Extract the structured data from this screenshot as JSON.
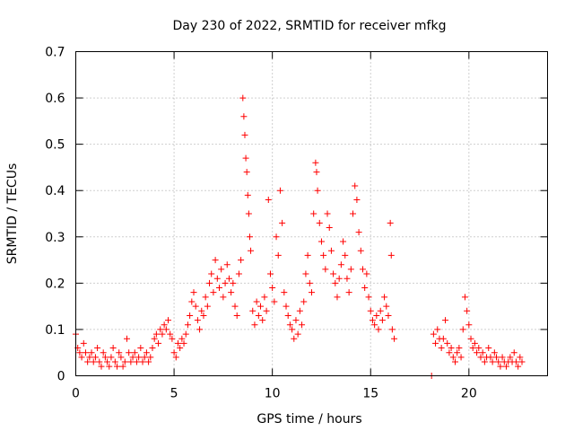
{
  "chart_data": {
    "type": "scatter",
    "title": "Day 230 of 2022, SRMTID for receiver mfkg",
    "xlabel": "GPS time / hours",
    "ylabel": "SRMTID / TECUs",
    "xlim": [
      0,
      24
    ],
    "ylim": [
      0,
      0.7
    ],
    "x_ticks": [
      0,
      5,
      10,
      15,
      20
    ],
    "x_tick_labels": [
      "0",
      "5",
      "10",
      "15",
      "20"
    ],
    "y_ticks": [
      0,
      0.1,
      0.2,
      0.3,
      0.4,
      0.5,
      0.6,
      0.7
    ],
    "y_tick_labels": [
      "0",
      "0.1",
      "0.2",
      "0.3",
      "0.4",
      "0.5",
      "0.6",
      "0.7"
    ],
    "grid": true,
    "marker": "+",
    "colors": {
      "series": "#ff0000",
      "grid": "#a0a0a0",
      "axis": "#000000"
    },
    "series": [
      {
        "name": "SRMTID",
        "points": [
          [
            0.0,
            0.09
          ],
          [
            0.1,
            0.06
          ],
          [
            0.2,
            0.05
          ],
          [
            0.3,
            0.04
          ],
          [
            0.4,
            0.07
          ],
          [
            0.5,
            0.05
          ],
          [
            0.6,
            0.03
          ],
          [
            0.7,
            0.04
          ],
          [
            0.8,
            0.05
          ],
          [
            0.9,
            0.03
          ],
          [
            1.0,
            0.04
          ],
          [
            1.1,
            0.06
          ],
          [
            1.2,
            0.03
          ],
          [
            1.3,
            0.02
          ],
          [
            1.4,
            0.05
          ],
          [
            1.5,
            0.04
          ],
          [
            1.6,
            0.03
          ],
          [
            1.7,
            0.02
          ],
          [
            1.8,
            0.04
          ],
          [
            1.9,
            0.06
          ],
          [
            2.0,
            0.03
          ],
          [
            2.1,
            0.02
          ],
          [
            2.2,
            0.05
          ],
          [
            2.3,
            0.04
          ],
          [
            2.4,
            0.02
          ],
          [
            2.5,
            0.03
          ],
          [
            2.6,
            0.08
          ],
          [
            2.7,
            0.05
          ],
          [
            2.8,
            0.03
          ],
          [
            2.9,
            0.04
          ],
          [
            3.0,
            0.05
          ],
          [
            3.1,
            0.03
          ],
          [
            3.2,
            0.04
          ],
          [
            3.3,
            0.06
          ],
          [
            3.4,
            0.03
          ],
          [
            3.5,
            0.04
          ],
          [
            3.6,
            0.05
          ],
          [
            3.7,
            0.03
          ],
          [
            3.8,
            0.04
          ],
          [
            3.9,
            0.06
          ],
          [
            4.0,
            0.08
          ],
          [
            4.1,
            0.09
          ],
          [
            4.2,
            0.07
          ],
          [
            4.3,
            0.1
          ],
          [
            4.4,
            0.09
          ],
          [
            4.5,
            0.11
          ],
          [
            4.6,
            0.1
          ],
          [
            4.7,
            0.12
          ],
          [
            4.8,
            0.09
          ],
          [
            4.9,
            0.08
          ],
          [
            5.0,
            0.05
          ],
          [
            5.1,
            0.04
          ],
          [
            5.2,
            0.07
          ],
          [
            5.3,
            0.06
          ],
          [
            5.4,
            0.08
          ],
          [
            5.5,
            0.07
          ],
          [
            5.6,
            0.09
          ],
          [
            5.7,
            0.11
          ],
          [
            5.8,
            0.13
          ],
          [
            5.9,
            0.16
          ],
          [
            6.0,
            0.18
          ],
          [
            6.1,
            0.15
          ],
          [
            6.2,
            0.12
          ],
          [
            6.3,
            0.1
          ],
          [
            6.4,
            0.14
          ],
          [
            6.5,
            0.13
          ],
          [
            6.6,
            0.17
          ],
          [
            6.7,
            0.15
          ],
          [
            6.8,
            0.2
          ],
          [
            6.9,
            0.22
          ],
          [
            7.0,
            0.18
          ],
          [
            7.1,
            0.25
          ],
          [
            7.2,
            0.21
          ],
          [
            7.3,
            0.19
          ],
          [
            7.4,
            0.23
          ],
          [
            7.5,
            0.17
          ],
          [
            7.6,
            0.2
          ],
          [
            7.7,
            0.24
          ],
          [
            7.8,
            0.21
          ],
          [
            7.9,
            0.18
          ],
          [
            8.0,
            0.2
          ],
          [
            8.1,
            0.15
          ],
          [
            8.2,
            0.13
          ],
          [
            8.3,
            0.22
          ],
          [
            8.4,
            0.25
          ],
          [
            8.5,
            0.6
          ],
          [
            8.55,
            0.56
          ],
          [
            8.6,
            0.52
          ],
          [
            8.65,
            0.47
          ],
          [
            8.7,
            0.44
          ],
          [
            8.75,
            0.39
          ],
          [
            8.8,
            0.35
          ],
          [
            8.85,
            0.3
          ],
          [
            8.9,
            0.27
          ],
          [
            9.0,
            0.14
          ],
          [
            9.1,
            0.11
          ],
          [
            9.2,
            0.16
          ],
          [
            9.3,
            0.13
          ],
          [
            9.4,
            0.15
          ],
          [
            9.5,
            0.12
          ],
          [
            9.6,
            0.17
          ],
          [
            9.7,
            0.14
          ],
          [
            9.8,
            0.38
          ],
          [
            9.9,
            0.22
          ],
          [
            10.0,
            0.19
          ],
          [
            10.1,
            0.16
          ],
          [
            10.2,
            0.3
          ],
          [
            10.3,
            0.26
          ],
          [
            10.4,
            0.4
          ],
          [
            10.5,
            0.33
          ],
          [
            10.6,
            0.18
          ],
          [
            10.7,
            0.15
          ],
          [
            10.8,
            0.13
          ],
          [
            10.9,
            0.11
          ],
          [
            11.0,
            0.1
          ],
          [
            11.1,
            0.08
          ],
          [
            11.2,
            0.12
          ],
          [
            11.3,
            0.09
          ],
          [
            11.4,
            0.14
          ],
          [
            11.5,
            0.11
          ],
          [
            11.6,
            0.16
          ],
          [
            11.7,
            0.22
          ],
          [
            11.8,
            0.26
          ],
          [
            11.9,
            0.2
          ],
          [
            12.0,
            0.18
          ],
          [
            12.1,
            0.35
          ],
          [
            12.2,
            0.46
          ],
          [
            12.25,
            0.44
          ],
          [
            12.3,
            0.4
          ],
          [
            12.4,
            0.33
          ],
          [
            12.5,
            0.29
          ],
          [
            12.6,
            0.26
          ],
          [
            12.7,
            0.23
          ],
          [
            12.8,
            0.35
          ],
          [
            12.9,
            0.32
          ],
          [
            13.0,
            0.27
          ],
          [
            13.1,
            0.22
          ],
          [
            13.2,
            0.2
          ],
          [
            13.3,
            0.17
          ],
          [
            13.4,
            0.21
          ],
          [
            13.5,
            0.24
          ],
          [
            13.6,
            0.29
          ],
          [
            13.7,
            0.26
          ],
          [
            13.8,
            0.21
          ],
          [
            13.9,
            0.18
          ],
          [
            14.0,
            0.23
          ],
          [
            14.1,
            0.35
          ],
          [
            14.2,
            0.41
          ],
          [
            14.3,
            0.38
          ],
          [
            14.4,
            0.31
          ],
          [
            14.5,
            0.27
          ],
          [
            14.6,
            0.23
          ],
          [
            14.7,
            0.19
          ],
          [
            14.8,
            0.22
          ],
          [
            14.9,
            0.17
          ],
          [
            15.0,
            0.14
          ],
          [
            15.1,
            0.12
          ],
          [
            15.2,
            0.11
          ],
          [
            15.3,
            0.13
          ],
          [
            15.4,
            0.1
          ],
          [
            15.5,
            0.14
          ],
          [
            15.6,
            0.12
          ],
          [
            15.7,
            0.17
          ],
          [
            15.8,
            0.15
          ],
          [
            15.9,
            0.13
          ],
          [
            16.0,
            0.33
          ],
          [
            16.05,
            0.26
          ],
          [
            16.1,
            0.1
          ],
          [
            16.2,
            0.08
          ],
          [
            18.1,
            0.0
          ],
          [
            18.2,
            0.09
          ],
          [
            18.3,
            0.07
          ],
          [
            18.4,
            0.1
          ],
          [
            18.5,
            0.08
          ],
          [
            18.6,
            0.06
          ],
          [
            18.7,
            0.08
          ],
          [
            18.8,
            0.12
          ],
          [
            18.9,
            0.07
          ],
          [
            19.0,
            0.05
          ],
          [
            19.1,
            0.06
          ],
          [
            19.2,
            0.04
          ],
          [
            19.3,
            0.03
          ],
          [
            19.4,
            0.05
          ],
          [
            19.5,
            0.06
          ],
          [
            19.6,
            0.04
          ],
          [
            19.7,
            0.1
          ],
          [
            19.8,
            0.17
          ],
          [
            19.9,
            0.14
          ],
          [
            20.0,
            0.11
          ],
          [
            20.1,
            0.08
          ],
          [
            20.2,
            0.06
          ],
          [
            20.3,
            0.07
          ],
          [
            20.4,
            0.05
          ],
          [
            20.5,
            0.06
          ],
          [
            20.6,
            0.04
          ],
          [
            20.7,
            0.05
          ],
          [
            20.8,
            0.03
          ],
          [
            20.9,
            0.04
          ],
          [
            21.0,
            0.06
          ],
          [
            21.1,
            0.04
          ],
          [
            21.2,
            0.03
          ],
          [
            21.3,
            0.05
          ],
          [
            21.4,
            0.04
          ],
          [
            21.5,
            0.03
          ],
          [
            21.6,
            0.02
          ],
          [
            21.7,
            0.04
          ],
          [
            21.8,
            0.03
          ],
          [
            21.9,
            0.02
          ],
          [
            22.0,
            0.03
          ],
          [
            22.1,
            0.04
          ],
          [
            22.2,
            0.03
          ],
          [
            22.3,
            0.05
          ],
          [
            22.4,
            0.03
          ],
          [
            22.5,
            0.02
          ],
          [
            22.6,
            0.04
          ],
          [
            22.7,
            0.03
          ]
        ]
      }
    ]
  }
}
